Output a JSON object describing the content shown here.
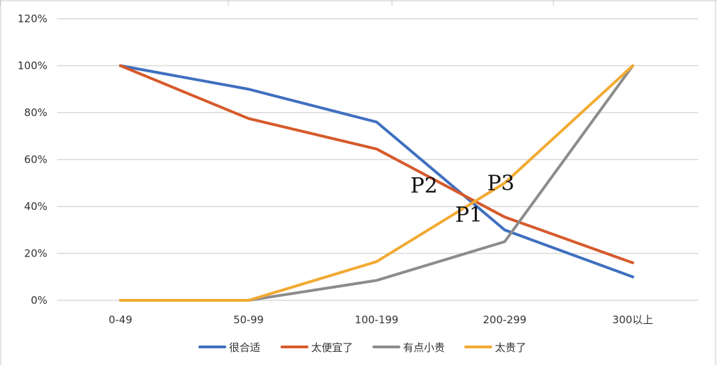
{
  "chart_data": {
    "type": "line",
    "categories": [
      "0-49",
      "50-99",
      "100-199",
      "200-299",
      "300以上"
    ],
    "y_ticks": [
      "0%",
      "20%",
      "40%",
      "60%",
      "80%",
      "100%",
      "120%"
    ],
    "ylim": [
      0,
      120
    ],
    "grid": true,
    "legend_position": "bottom",
    "series": [
      {
        "name": "很合适",
        "color": "#3f6fbf",
        "values": [
          100,
          90,
          76,
          30,
          10
        ]
      },
      {
        "name": "太便宜了",
        "color": "#d65a2b",
        "values": [
          100,
          77.5,
          64.5,
          35.5,
          16
        ]
      },
      {
        "name": "有点小贵",
        "color": "#8c8c8c",
        "values": [
          0,
          0,
          8.5,
          25,
          100
        ]
      },
      {
        "name": "太贵了",
        "color": "#f2aa32",
        "values": [
          0,
          0,
          16.5,
          50,
          100
        ]
      }
    ],
    "annotations": [
      {
        "text": "P2",
        "x": 2.37,
        "y": 46
      },
      {
        "text": "P3",
        "x": 2.97,
        "y": 47
      },
      {
        "text": "P1",
        "x": 2.72,
        "y": 33.5
      }
    ]
  }
}
